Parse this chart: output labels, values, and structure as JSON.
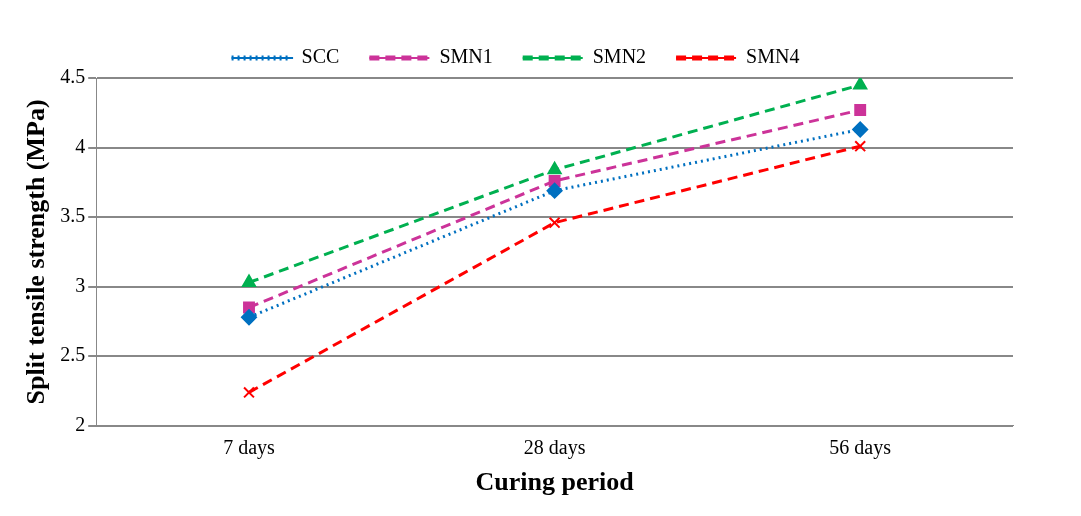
{
  "chart_data": {
    "type": "line",
    "xlabel": "Curing period",
    "ylabel": "Split tensile strength (MPa)",
    "categories": [
      "7 days",
      "28 days",
      "56 days"
    ],
    "series": [
      {
        "name": "SCC",
        "color": "#0070c0",
        "values": [
          2.78,
          3.69,
          4.13
        ],
        "marker": "diamond",
        "line_style": "dotted"
      },
      {
        "name": "SMN1",
        "color": "#cc3399",
        "values": [
          2.85,
          3.76,
          4.27
        ],
        "marker": "square",
        "line_style": "dashed"
      },
      {
        "name": "SMN2",
        "color": "#00b050",
        "values": [
          3.03,
          3.84,
          4.45
        ],
        "marker": "triangle",
        "line_style": "dashed"
      },
      {
        "name": "SMN4",
        "color": "#ff0000",
        "values": [
          2.24,
          3.46,
          4.01
        ],
        "marker": "cross",
        "line_style": "dashed"
      }
    ],
    "ylim": [
      2,
      4.5
    ],
    "yticks": [
      2,
      2.5,
      3,
      3.5,
      4,
      4.5
    ],
    "grid": "y",
    "legend": "top"
  }
}
